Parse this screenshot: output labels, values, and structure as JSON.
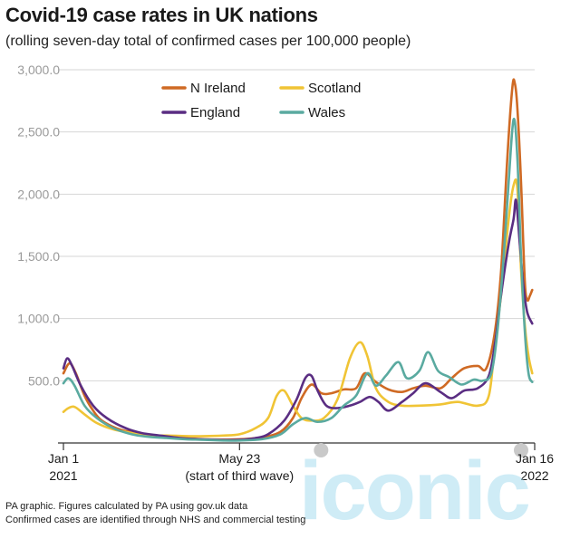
{
  "chart_data": {
    "type": "line",
    "title": "Covid-19 case rates in UK nations",
    "subtitle": "(rolling seven-day total of confirmed cases per 100,000 people)",
    "xlim": [
      "2021-01-01",
      "2022-01-16"
    ],
    "ylim": [
      0,
      3000
    ],
    "yticks": [
      500,
      1000,
      1500,
      2000,
      2500,
      3000
    ],
    "ytick_labels": [
      "500.0",
      "1,000.0",
      "1,500.0",
      "2,000.0",
      "2,500.0",
      "3,000.0"
    ],
    "grid": true,
    "legend_position": "top-left",
    "x_annotations": [
      {
        "date": "2021-01-01",
        "line1": "Jan 1",
        "line2": "2021"
      },
      {
        "date": "2021-05-23",
        "line1": "May 23",
        "line2": "(start of third wave)"
      },
      {
        "date": "2022-01-16",
        "line1": "Jan 16",
        "line2": "2022"
      }
    ],
    "series": [
      {
        "name": "N Ireland",
        "color": "#cf6a24",
        "points": [
          [
            "2021-01-01",
            560
          ],
          [
            "2021-01-06",
            640
          ],
          [
            "2021-01-11",
            560
          ],
          [
            "2021-01-18",
            380
          ],
          [
            "2021-01-25",
            260
          ],
          [
            "2021-02-01",
            180
          ],
          [
            "2021-02-15",
            110
          ],
          [
            "2021-03-01",
            80
          ],
          [
            "2021-03-15",
            60
          ],
          [
            "2021-04-01",
            45
          ],
          [
            "2021-04-15",
            35
          ],
          [
            "2021-05-01",
            28
          ],
          [
            "2021-05-23",
            30
          ],
          [
            "2021-06-10",
            45
          ],
          [
            "2021-06-25",
            90
          ],
          [
            "2021-07-05",
            200
          ],
          [
            "2021-07-12",
            360
          ],
          [
            "2021-07-20",
            470
          ],
          [
            "2021-07-28",
            400
          ],
          [
            "2021-08-05",
            400
          ],
          [
            "2021-08-15",
            430
          ],
          [
            "2021-08-25",
            440
          ],
          [
            "2021-09-01",
            560
          ],
          [
            "2021-09-10",
            490
          ],
          [
            "2021-09-20",
            430
          ],
          [
            "2021-10-01",
            410
          ],
          [
            "2021-10-10",
            440
          ],
          [
            "2021-10-20",
            460
          ],
          [
            "2021-11-01",
            440
          ],
          [
            "2021-11-10",
            520
          ],
          [
            "2021-11-20",
            600
          ],
          [
            "2021-12-01",
            620
          ],
          [
            "2021-12-08",
            600
          ],
          [
            "2021-12-15",
            900
          ],
          [
            "2021-12-20",
            1400
          ],
          [
            "2021-12-25",
            2300
          ],
          [
            "2021-12-29",
            2860
          ],
          [
            "2021-12-31",
            2890
          ],
          [
            "2022-01-02",
            2700
          ],
          [
            "2022-01-05",
            2100
          ],
          [
            "2022-01-08",
            1300
          ],
          [
            "2022-01-10",
            1150
          ],
          [
            "2022-01-12",
            1180
          ],
          [
            "2022-01-14",
            1230
          ]
        ]
      },
      {
        "name": "Scotland",
        "color": "#f0c435",
        "points": [
          [
            "2021-01-01",
            250
          ],
          [
            "2021-01-05",
            280
          ],
          [
            "2021-01-10",
            290
          ],
          [
            "2021-01-18",
            230
          ],
          [
            "2021-01-28",
            160
          ],
          [
            "2021-02-10",
            110
          ],
          [
            "2021-02-25",
            80
          ],
          [
            "2021-03-10",
            60
          ],
          [
            "2021-03-25",
            60
          ],
          [
            "2021-04-10",
            55
          ],
          [
            "2021-04-25",
            55
          ],
          [
            "2021-05-10",
            60
          ],
          [
            "2021-05-23",
            70
          ],
          [
            "2021-06-05",
            120
          ],
          [
            "2021-06-15",
            200
          ],
          [
            "2021-06-22",
            380
          ],
          [
            "2021-06-28",
            420
          ],
          [
            "2021-07-05",
            300
          ],
          [
            "2021-07-12",
            200
          ],
          [
            "2021-07-20",
            180
          ],
          [
            "2021-07-30",
            200
          ],
          [
            "2021-08-10",
            350
          ],
          [
            "2021-08-20",
            680
          ],
          [
            "2021-08-28",
            810
          ],
          [
            "2021-09-03",
            700
          ],
          [
            "2021-09-10",
            440
          ],
          [
            "2021-09-20",
            330
          ],
          [
            "2021-10-01",
            300
          ],
          [
            "2021-10-15",
            300
          ],
          [
            "2021-11-01",
            310
          ],
          [
            "2021-11-15",
            330
          ],
          [
            "2021-12-01",
            300
          ],
          [
            "2021-12-10",
            380
          ],
          [
            "2021-12-15",
            800
          ],
          [
            "2021-12-20",
            1200
          ],
          [
            "2021-12-26",
            1800
          ],
          [
            "2021-12-30",
            2070
          ],
          [
            "2022-01-02",
            2050
          ],
          [
            "2022-01-05",
            1400
          ],
          [
            "2022-01-08",
            950
          ],
          [
            "2022-01-11",
            700
          ],
          [
            "2022-01-14",
            560
          ]
        ]
      },
      {
        "name": "England",
        "color": "#5a2d82",
        "points": [
          [
            "2021-01-01",
            600
          ],
          [
            "2021-01-04",
            680
          ],
          [
            "2021-01-08",
            620
          ],
          [
            "2021-01-15",
            460
          ],
          [
            "2021-01-25",
            300
          ],
          [
            "2021-02-05",
            200
          ],
          [
            "2021-02-20",
            120
          ],
          [
            "2021-03-05",
            80
          ],
          [
            "2021-03-20",
            60
          ],
          [
            "2021-04-05",
            40
          ],
          [
            "2021-04-20",
            30
          ],
          [
            "2021-05-05",
            25
          ],
          [
            "2021-05-23",
            25
          ],
          [
            "2021-06-05",
            40
          ],
          [
            "2021-06-15",
            70
          ],
          [
            "2021-06-28",
            180
          ],
          [
            "2021-07-08",
            350
          ],
          [
            "2021-07-15",
            520
          ],
          [
            "2021-07-20",
            540
          ],
          [
            "2021-07-25",
            420
          ],
          [
            "2021-08-01",
            300
          ],
          [
            "2021-08-10",
            280
          ],
          [
            "2021-08-20",
            300
          ],
          [
            "2021-08-28",
            330
          ],
          [
            "2021-09-05",
            370
          ],
          [
            "2021-09-12",
            330
          ],
          [
            "2021-09-20",
            260
          ],
          [
            "2021-10-01",
            330
          ],
          [
            "2021-10-10",
            400
          ],
          [
            "2021-10-20",
            480
          ],
          [
            "2021-11-01",
            410
          ],
          [
            "2021-11-10",
            360
          ],
          [
            "2021-11-20",
            420
          ],
          [
            "2021-12-01",
            440
          ],
          [
            "2021-12-10",
            540
          ],
          [
            "2021-12-15",
            800
          ],
          [
            "2021-12-20",
            1200
          ],
          [
            "2021-12-26",
            1600
          ],
          [
            "2021-12-30",
            1800
          ],
          [
            "2022-01-01",
            1950
          ],
          [
            "2022-01-04",
            1600
          ],
          [
            "2022-01-07",
            1250
          ],
          [
            "2022-01-10",
            1050
          ],
          [
            "2022-01-14",
            960
          ]
        ]
      },
      {
        "name": "Wales",
        "color": "#5aaaa0",
        "points": [
          [
            "2021-01-01",
            480
          ],
          [
            "2021-01-05",
            520
          ],
          [
            "2021-01-10",
            460
          ],
          [
            "2021-01-18",
            300
          ],
          [
            "2021-01-28",
            200
          ],
          [
            "2021-02-10",
            120
          ],
          [
            "2021-02-25",
            70
          ],
          [
            "2021-03-10",
            50
          ],
          [
            "2021-03-25",
            40
          ],
          [
            "2021-04-10",
            30
          ],
          [
            "2021-04-25",
            25
          ],
          [
            "2021-05-10",
            20
          ],
          [
            "2021-05-23",
            20
          ],
          [
            "2021-06-10",
            30
          ],
          [
            "2021-06-25",
            70
          ],
          [
            "2021-07-05",
            150
          ],
          [
            "2021-07-15",
            200
          ],
          [
            "2021-07-25",
            170
          ],
          [
            "2021-08-05",
            200
          ],
          [
            "2021-08-15",
            300
          ],
          [
            "2021-08-25",
            380
          ],
          [
            "2021-09-03",
            560
          ],
          [
            "2021-09-10",
            460
          ],
          [
            "2021-09-18",
            540
          ],
          [
            "2021-09-28",
            650
          ],
          [
            "2021-10-05",
            520
          ],
          [
            "2021-10-15",
            580
          ],
          [
            "2021-10-22",
            730
          ],
          [
            "2021-10-30",
            580
          ],
          [
            "2021-11-08",
            530
          ],
          [
            "2021-11-18",
            470
          ],
          [
            "2021-11-28",
            510
          ],
          [
            "2021-12-05",
            500
          ],
          [
            "2021-12-12",
            560
          ],
          [
            "2021-12-17",
            900
          ],
          [
            "2021-12-22",
            1500
          ],
          [
            "2021-12-26",
            2100
          ],
          [
            "2021-12-30",
            2600
          ],
          [
            "2022-01-02",
            2300
          ],
          [
            "2022-01-05",
            1500
          ],
          [
            "2022-01-08",
            900
          ],
          [
            "2022-01-11",
            560
          ],
          [
            "2022-01-14",
            490
          ]
        ]
      }
    ]
  },
  "footer": {
    "line1": "PA graphic. Figures calculated by PA using gov.uk data",
    "line2": "Confirmed cases are identified through NHS and commercial testing"
  },
  "watermark": {
    "text": "iconic"
  }
}
